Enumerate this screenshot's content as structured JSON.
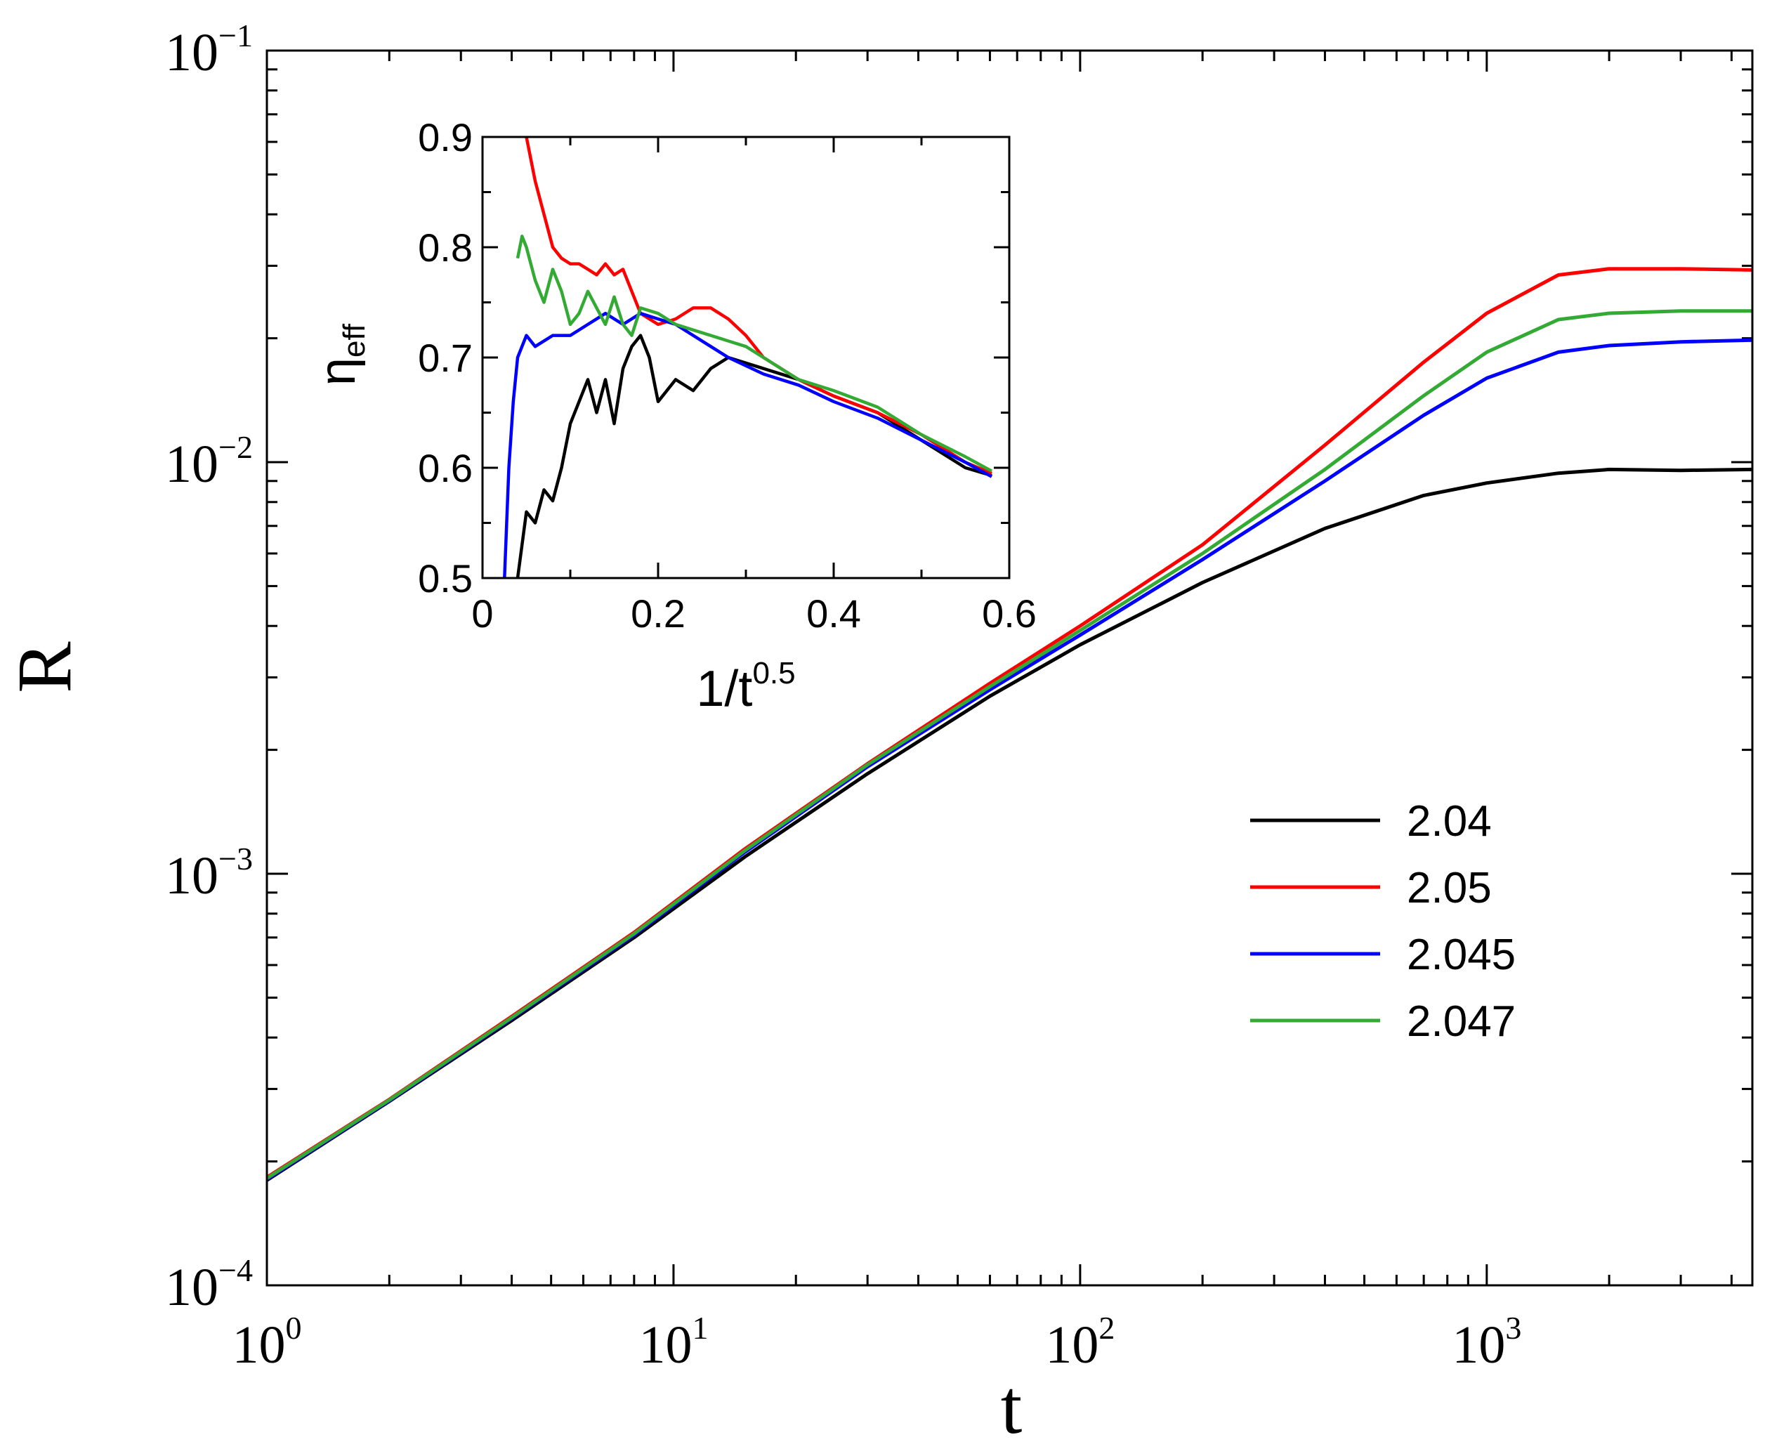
{
  "chart_data": [
    {
      "type": "line",
      "name": "main",
      "title": "",
      "xlabel": "t",
      "ylabel": "R",
      "xscale": "log",
      "yscale": "log",
      "xlim": [
        1,
        4500
      ],
      "ylim": [
        0.0001,
        0.1
      ],
      "x_ticks": [
        {
          "base": "10",
          "exp": "0"
        },
        {
          "base": "10",
          "exp": "1"
        },
        {
          "base": "10",
          "exp": "2"
        },
        {
          "base": "10",
          "exp": "3"
        }
      ],
      "y_ticks": [
        {
          "base": "10",
          "exp": "−4"
        },
        {
          "base": "10",
          "exp": "−3"
        },
        {
          "base": "10",
          "exp": "−2"
        },
        {
          "base": "10",
          "exp": "−1"
        }
      ],
      "legend_position": "lower-right",
      "series": [
        {
          "name": "2.04",
          "color": "#000000",
          "points": [
            [
              1,
              0.00018
            ],
            [
              2,
              0.00028
            ],
            [
              4,
              0.00044
            ],
            [
              8,
              0.0007
            ],
            [
              15,
              0.0011
            ],
            [
              30,
              0.00175
            ],
            [
              60,
              0.0027
            ],
            [
              100,
              0.0036
            ],
            [
              200,
              0.0051
            ],
            [
              400,
              0.0069
            ],
            [
              700,
              0.0083
            ],
            [
              1000,
              0.0089
            ],
            [
              1500,
              0.0094
            ],
            [
              2000,
              0.0096
            ],
            [
              3000,
              0.00955
            ],
            [
              4500,
              0.0096
            ]
          ]
        },
        {
          "name": "2.05",
          "color": "#ff0000",
          "points": [
            [
              1,
              0.000183
            ],
            [
              2,
              0.000283
            ],
            [
              4,
              0.00045
            ],
            [
              8,
              0.00072
            ],
            [
              15,
              0.00115
            ],
            [
              30,
              0.00185
            ],
            [
              60,
              0.0029
            ],
            [
              100,
              0.004
            ],
            [
              200,
              0.0063
            ],
            [
              400,
              0.011
            ],
            [
              700,
              0.0175
            ],
            [
              1000,
              0.023
            ],
            [
              1500,
              0.0285
            ],
            [
              2000,
              0.0295
            ],
            [
              3000,
              0.0295
            ],
            [
              4500,
              0.0293
            ]
          ]
        },
        {
          "name": "2.045",
          "color": "#0000ff",
          "points": [
            [
              1,
              0.000181
            ],
            [
              2,
              0.000281
            ],
            [
              4,
              0.000445
            ],
            [
              8,
              0.00071
            ],
            [
              15,
              0.00113
            ],
            [
              30,
              0.00182
            ],
            [
              60,
              0.0028
            ],
            [
              100,
              0.0038
            ],
            [
              200,
              0.0058
            ],
            [
              400,
              0.009
            ],
            [
              700,
              0.013
            ],
            [
              1000,
              0.016
            ],
            [
              1500,
              0.0185
            ],
            [
              2000,
              0.0192
            ],
            [
              3000,
              0.0196
            ],
            [
              4500,
              0.0198
            ]
          ]
        },
        {
          "name": "2.047",
          "color": "#33aa33",
          "points": [
            [
              1,
              0.000182
            ],
            [
              2,
              0.000282
            ],
            [
              4,
              0.000447
            ],
            [
              8,
              0.000715
            ],
            [
              15,
              0.00114
            ],
            [
              30,
              0.00184
            ],
            [
              60,
              0.00285
            ],
            [
              100,
              0.0039
            ],
            [
              200,
              0.006
            ],
            [
              400,
              0.0096
            ],
            [
              700,
              0.0145
            ],
            [
              1000,
              0.0185
            ],
            [
              1500,
              0.0222
            ],
            [
              2000,
              0.023
            ],
            [
              3000,
              0.0233
            ],
            [
              4500,
              0.0233
            ]
          ]
        }
      ]
    },
    {
      "type": "line",
      "name": "inset",
      "xlabel": {
        "base": "1/t",
        "exp": "0.5"
      },
      "ylabel": {
        "base": "η",
        "sub": "eff"
      },
      "xlim": [
        0,
        0.6
      ],
      "ylim": [
        0.5,
        0.9
      ],
      "x_ticks": [
        "0",
        "0.2",
        "0.4",
        "0.6"
      ],
      "y_ticks": [
        "0.5",
        "0.6",
        "0.7",
        "0.8",
        "0.9"
      ],
      "series": [
        {
          "name": "2.04",
          "color": "#000000",
          "points": [
            [
              0.04,
              0.5
            ],
            [
              0.05,
              0.56
            ],
            [
              0.06,
              0.55
            ],
            [
              0.07,
              0.58
            ],
            [
              0.08,
              0.57
            ],
            [
              0.09,
              0.6
            ],
            [
              0.1,
              0.64
            ],
            [
              0.11,
              0.66
            ],
            [
              0.12,
              0.68
            ],
            [
              0.13,
              0.65
            ],
            [
              0.14,
              0.68
            ],
            [
              0.15,
              0.64
            ],
            [
              0.16,
              0.69
            ],
            [
              0.17,
              0.71
            ],
            [
              0.18,
              0.72
            ],
            [
              0.19,
              0.7
            ],
            [
              0.2,
              0.66
            ],
            [
              0.22,
              0.68
            ],
            [
              0.24,
              0.67
            ],
            [
              0.26,
              0.69
            ],
            [
              0.28,
              0.7
            ],
            [
              0.32,
              0.69
            ],
            [
              0.36,
              0.68
            ],
            [
              0.4,
              0.665
            ],
            [
              0.45,
              0.65
            ],
            [
              0.5,
              0.625
            ],
            [
              0.55,
              0.6
            ],
            [
              0.58,
              0.593
            ]
          ]
        },
        {
          "name": "2.05",
          "color": "#ff0000",
          "points": [
            [
              0.05,
              0.9
            ],
            [
              0.06,
              0.86
            ],
            [
              0.07,
              0.83
            ],
            [
              0.08,
              0.8
            ],
            [
              0.09,
              0.79
            ],
            [
              0.1,
              0.785
            ],
            [
              0.11,
              0.785
            ],
            [
              0.12,
              0.78
            ],
            [
              0.13,
              0.775
            ],
            [
              0.14,
              0.785
            ],
            [
              0.15,
              0.775
            ],
            [
              0.16,
              0.78
            ],
            [
              0.17,
              0.76
            ],
            [
              0.18,
              0.74
            ],
            [
              0.2,
              0.73
            ],
            [
              0.22,
              0.735
            ],
            [
              0.24,
              0.745
            ],
            [
              0.26,
              0.745
            ],
            [
              0.28,
              0.735
            ],
            [
              0.3,
              0.72
            ],
            [
              0.32,
              0.7
            ],
            [
              0.36,
              0.68
            ],
            [
              0.4,
              0.665
            ],
            [
              0.45,
              0.65
            ],
            [
              0.5,
              0.63
            ],
            [
              0.55,
              0.605
            ],
            [
              0.58,
              0.595
            ]
          ]
        },
        {
          "name": "2.045",
          "color": "#0000ff",
          "points": [
            [
              0.025,
              0.5
            ],
            [
              0.03,
              0.6
            ],
            [
              0.035,
              0.66
            ],
            [
              0.04,
              0.7
            ],
            [
              0.05,
              0.72
            ],
            [
              0.06,
              0.71
            ],
            [
              0.08,
              0.72
            ],
            [
              0.1,
              0.72
            ],
            [
              0.12,
              0.73
            ],
            [
              0.14,
              0.74
            ],
            [
              0.16,
              0.73
            ],
            [
              0.18,
              0.74
            ],
            [
              0.2,
              0.735
            ],
            [
              0.22,
              0.73
            ],
            [
              0.24,
              0.72
            ],
            [
              0.26,
              0.71
            ],
            [
              0.28,
              0.7
            ],
            [
              0.32,
              0.685
            ],
            [
              0.36,
              0.675
            ],
            [
              0.4,
              0.66
            ],
            [
              0.45,
              0.645
            ],
            [
              0.5,
              0.625
            ],
            [
              0.55,
              0.605
            ],
            [
              0.58,
              0.592
            ]
          ]
        },
        {
          "name": "2.047",
          "color": "#33aa33",
          "points": [
            [
              0.04,
              0.79
            ],
            [
              0.045,
              0.81
            ],
            [
              0.05,
              0.8
            ],
            [
              0.06,
              0.77
            ],
            [
              0.07,
              0.75
            ],
            [
              0.08,
              0.78
            ],
            [
              0.09,
              0.76
            ],
            [
              0.1,
              0.73
            ],
            [
              0.11,
              0.74
            ],
            [
              0.12,
              0.76
            ],
            [
              0.13,
              0.745
            ],
            [
              0.14,
              0.73
            ],
            [
              0.15,
              0.755
            ],
            [
              0.16,
              0.73
            ],
            [
              0.17,
              0.72
            ],
            [
              0.18,
              0.745
            ],
            [
              0.2,
              0.74
            ],
            [
              0.22,
              0.73
            ],
            [
              0.24,
              0.725
            ],
            [
              0.26,
              0.72
            ],
            [
              0.28,
              0.715
            ],
            [
              0.3,
              0.71
            ],
            [
              0.32,
              0.7
            ],
            [
              0.36,
              0.68
            ],
            [
              0.4,
              0.67
            ],
            [
              0.45,
              0.655
            ],
            [
              0.5,
              0.63
            ],
            [
              0.55,
              0.61
            ],
            [
              0.58,
              0.597
            ]
          ]
        }
      ]
    }
  ]
}
